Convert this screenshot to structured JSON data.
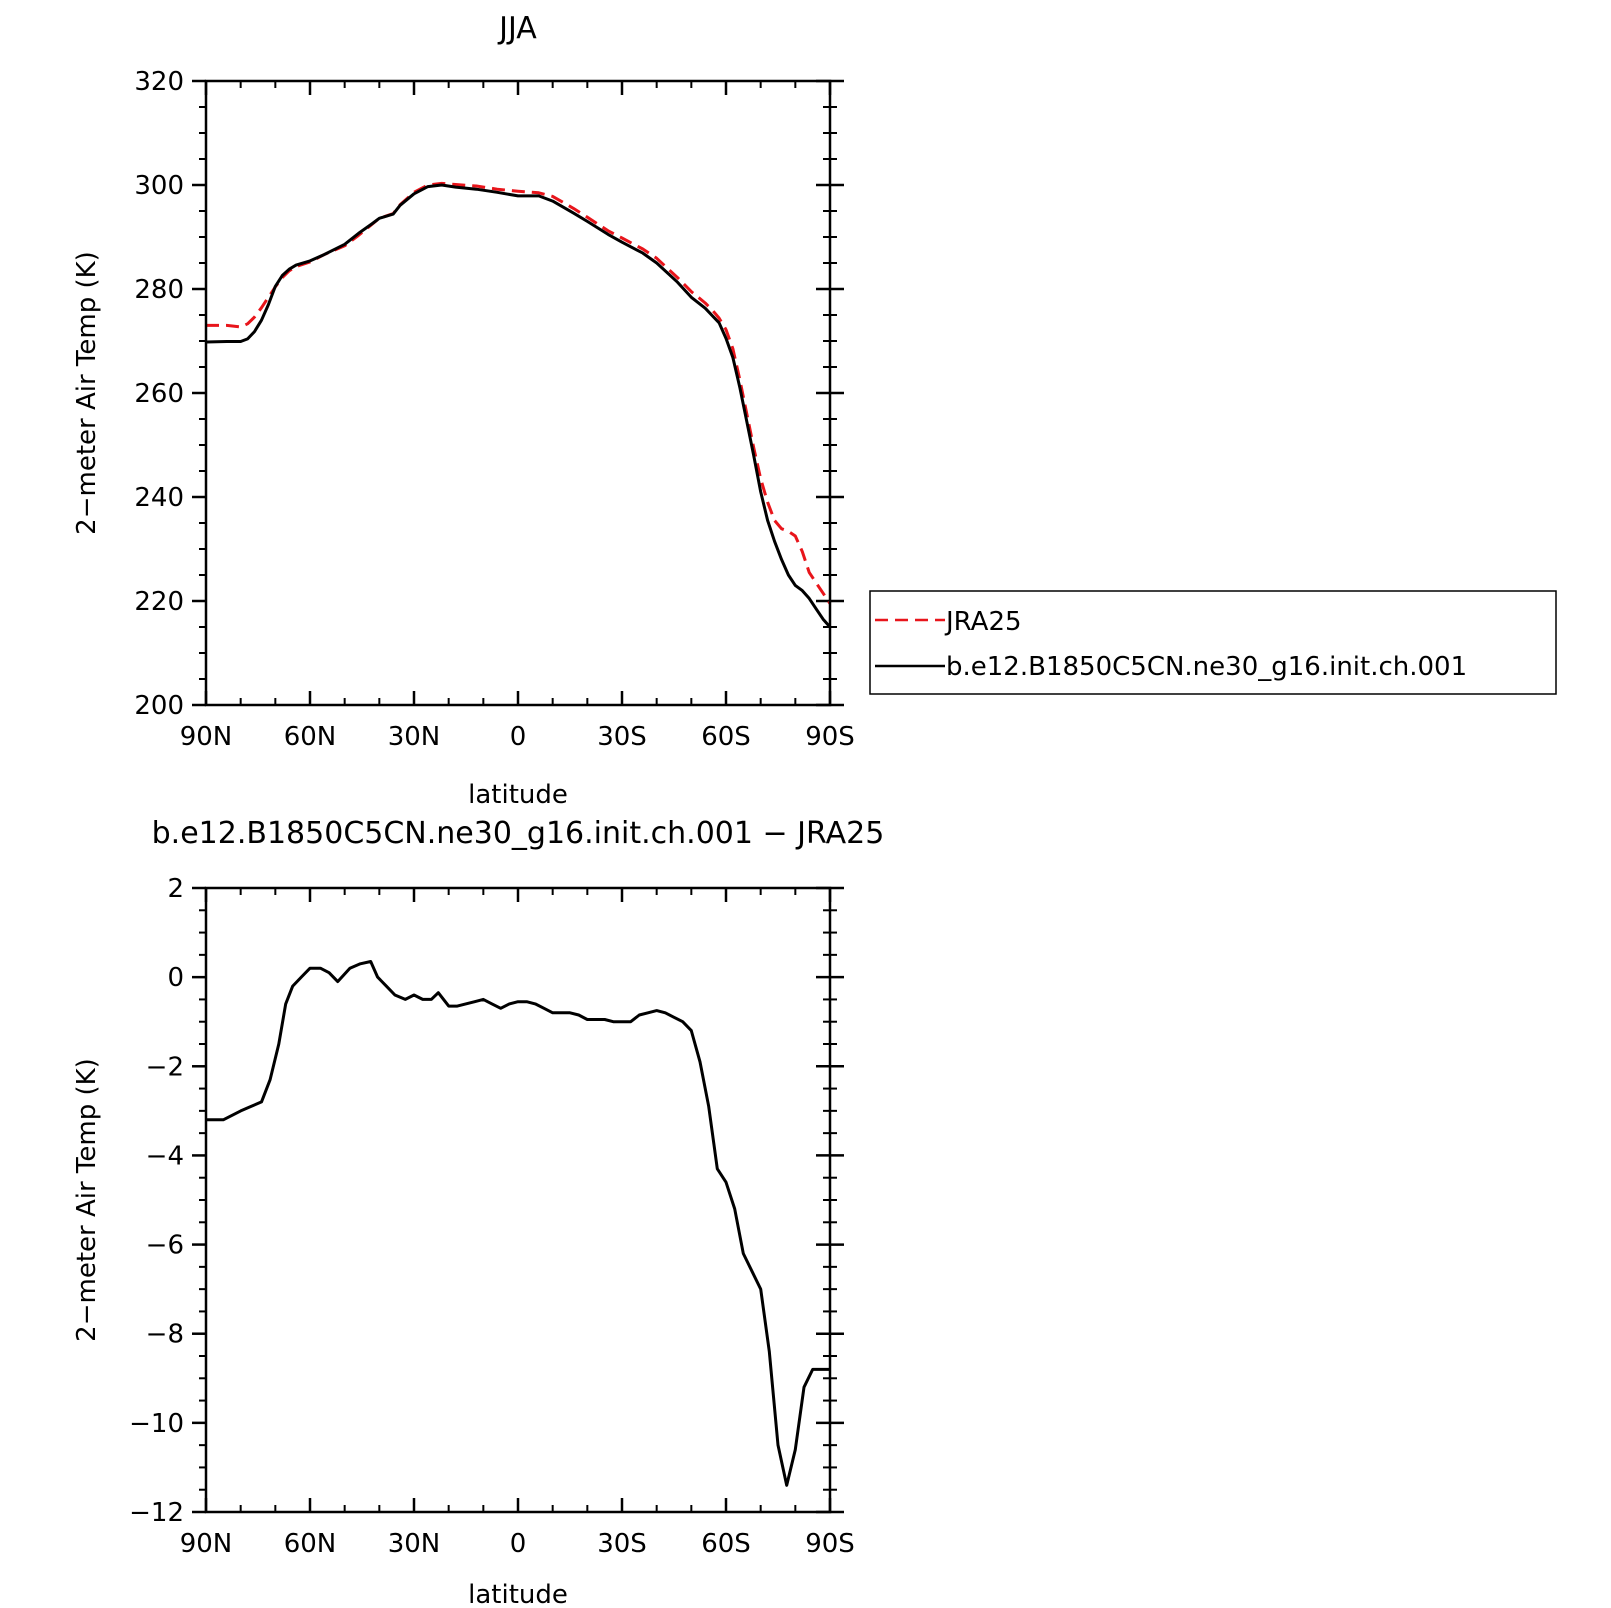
{
  "chart_data": [
    {
      "type": "line",
      "title": "JJA",
      "xlabel": "latitude",
      "ylabel": "2−meter Air Temp (K)",
      "xlim": [
        90,
        -90
      ],
      "ylim": [
        200,
        320
      ],
      "x_tick_values": [
        90,
        60,
        30,
        0,
        -30,
        -60,
        -90
      ],
      "x_tick_labels": [
        "90N",
        "60N",
        "30N",
        "0",
        "30S",
        "60S",
        "90S"
      ],
      "y_tick_values": [
        200,
        220,
        240,
        260,
        280,
        300,
        320
      ],
      "y_tick_labels": [
        "200",
        "220",
        "240",
        "260",
        "280",
        "300",
        "320"
      ],
      "grid": false,
      "legend_position": "right",
      "series": [
        {
          "name": "JRA25",
          "color": "#e8151b",
          "dash": "dashed",
          "x": [
            90,
            84,
            80,
            78,
            76,
            74,
            72,
            70,
            68,
            66,
            64,
            60,
            56,
            50,
            46,
            42,
            40,
            36,
            34,
            30,
            26,
            22,
            18,
            12,
            6,
            0,
            -6,
            -10,
            -16,
            -20,
            -26,
            -30,
            -36,
            -40,
            -46,
            -50,
            -54,
            -56,
            -58,
            -60,
            -62,
            -64,
            -66,
            -68,
            -70,
            -72,
            -74,
            -76,
            -78,
            -80,
            -82,
            -84,
            -86,
            -88,
            -90
          ],
          "y": [
            273,
            273,
            272.7,
            273.3,
            274.6,
            276.4,
            278.4,
            280.4,
            282.2,
            283.5,
            284.3,
            285.2,
            286.6,
            288.3,
            290.3,
            292.5,
            293.6,
            294.5,
            296.2,
            298.6,
            300.0,
            300.3,
            300.1,
            299.8,
            299.2,
            298.8,
            298.5,
            297.8,
            295.5,
            293.8,
            291.2,
            289.8,
            287.7,
            285.9,
            282.2,
            279.5,
            277.3,
            276.0,
            274.4,
            272.2,
            268.5,
            262.5,
            256.0,
            249.5,
            243.5,
            239.0,
            235.5,
            233.9,
            233.4,
            232.5,
            229.5,
            225.5,
            223.5,
            221.5,
            219.5
          ]
        },
        {
          "name": "b.e12.B1850C5CN.ne30_g16.init.ch.001",
          "color": "#000000",
          "dash": "solid",
          "x": [
            90,
            84,
            80,
            78,
            76,
            74,
            72,
            70,
            68,
            66,
            64,
            60,
            56,
            50,
            46,
            42,
            40,
            36,
            34,
            30,
            26,
            22,
            18,
            12,
            6,
            0,
            -6,
            -10,
            -16,
            -20,
            -26,
            -30,
            -36,
            -40,
            -46,
            -50,
            -54,
            -56,
            -58,
            -60,
            -62,
            -64,
            -66,
            -68,
            -70,
            -72,
            -74,
            -76,
            -78,
            -80,
            -82,
            -84,
            -86,
            -88,
            -90
          ],
          "y": [
            269.8,
            269.9,
            269.9,
            270.4,
            271.8,
            274.0,
            277.0,
            280.5,
            282.6,
            283.8,
            284.6,
            285.4,
            286.6,
            288.6,
            290.7,
            292.6,
            293.6,
            294.4,
            296.1,
            298.3,
            299.7,
            300.0,
            299.6,
            299.2,
            298.6,
            297.9,
            297.9,
            296.9,
            294.6,
            293.0,
            290.5,
            289.0,
            286.9,
            285.0,
            281.3,
            278.4,
            276.3,
            274.9,
            273.5,
            270.5,
            266.8,
            261.0,
            254.5,
            248.0,
            241.0,
            235.5,
            231.5,
            228.0,
            225.0,
            223.0,
            222.0,
            220.5,
            218.5,
            216.5,
            215.0
          ]
        }
      ]
    },
    {
      "type": "line",
      "title": "b.e12.B1850C5CN.ne30_g16.init.ch.001 − JRA25",
      "xlabel": "latitude",
      "ylabel": "2−meter Air Temp (K)",
      "xlim": [
        90,
        -90
      ],
      "ylim": [
        -12,
        2
      ],
      "x_tick_values": [
        90,
        60,
        30,
        0,
        -30,
        -60,
        -90
      ],
      "x_tick_labels": [
        "90N",
        "60N",
        "30N",
        "0",
        "30S",
        "60S",
        "90S"
      ],
      "y_tick_values": [
        -12,
        -10,
        -8,
        -6,
        -4,
        -2,
        0,
        2
      ],
      "y_tick_labels": [
        "−12",
        "−10",
        "−8",
        "−6",
        "−4",
        "−2",
        "0",
        "2"
      ],
      "grid": false,
      "series": [
        {
          "color": "#000000",
          "dash": "solid",
          "x": [
            90,
            85,
            80,
            77,
            74,
            71.5,
            69,
            67,
            65,
            62.5,
            60,
            57,
            54.5,
            52,
            48.5,
            45.5,
            42.5,
            40.5,
            38,
            35.5,
            32.5,
            30,
            27.5,
            25,
            23,
            20,
            17.5,
            12.5,
            10,
            7.5,
            5,
            2.5,
            0,
            -2.5,
            -5,
            -7.5,
            -10,
            -12.5,
            -15,
            -17.5,
            -20,
            -22.5,
            -25,
            -27.5,
            -30,
            -32.5,
            -35,
            -37.5,
            -40,
            -42.5,
            -45,
            -47.5,
            -50,
            -52.5,
            -55,
            -57.5,
            -60,
            -62.5,
            -65,
            -67.5,
            -70,
            -72.5,
            -75,
            -77.5,
            -80,
            -82.5,
            -85,
            -87.5,
            -90
          ],
          "y": [
            -3.2,
            -3.2,
            -3.0,
            -2.9,
            -2.8,
            -2.3,
            -1.5,
            -0.6,
            -0.2,
            0.0,
            0.2,
            0.2,
            0.1,
            -0.1,
            0.2,
            0.3,
            0.35,
            0.0,
            -0.2,
            -0.4,
            -0.5,
            -0.4,
            -0.5,
            -0.5,
            -0.35,
            -0.65,
            -0.65,
            -0.55,
            -0.5,
            -0.6,
            -0.7,
            -0.6,
            -0.55,
            -0.55,
            -0.6,
            -0.7,
            -0.8,
            -0.8,
            -0.8,
            -0.85,
            -0.95,
            -0.95,
            -0.95,
            -1.0,
            -1.0,
            -1.0,
            -0.85,
            -0.8,
            -0.75,
            -0.8,
            -0.9,
            -1.0,
            -1.2,
            -1.9,
            -2.9,
            -4.3,
            -4.6,
            -5.2,
            -6.2,
            -6.6,
            -7.0,
            -8.4,
            -10.5,
            -11.4,
            -10.6,
            -9.2,
            -8.8,
            -8.8,
            -8.8
          ]
        }
      ]
    }
  ]
}
